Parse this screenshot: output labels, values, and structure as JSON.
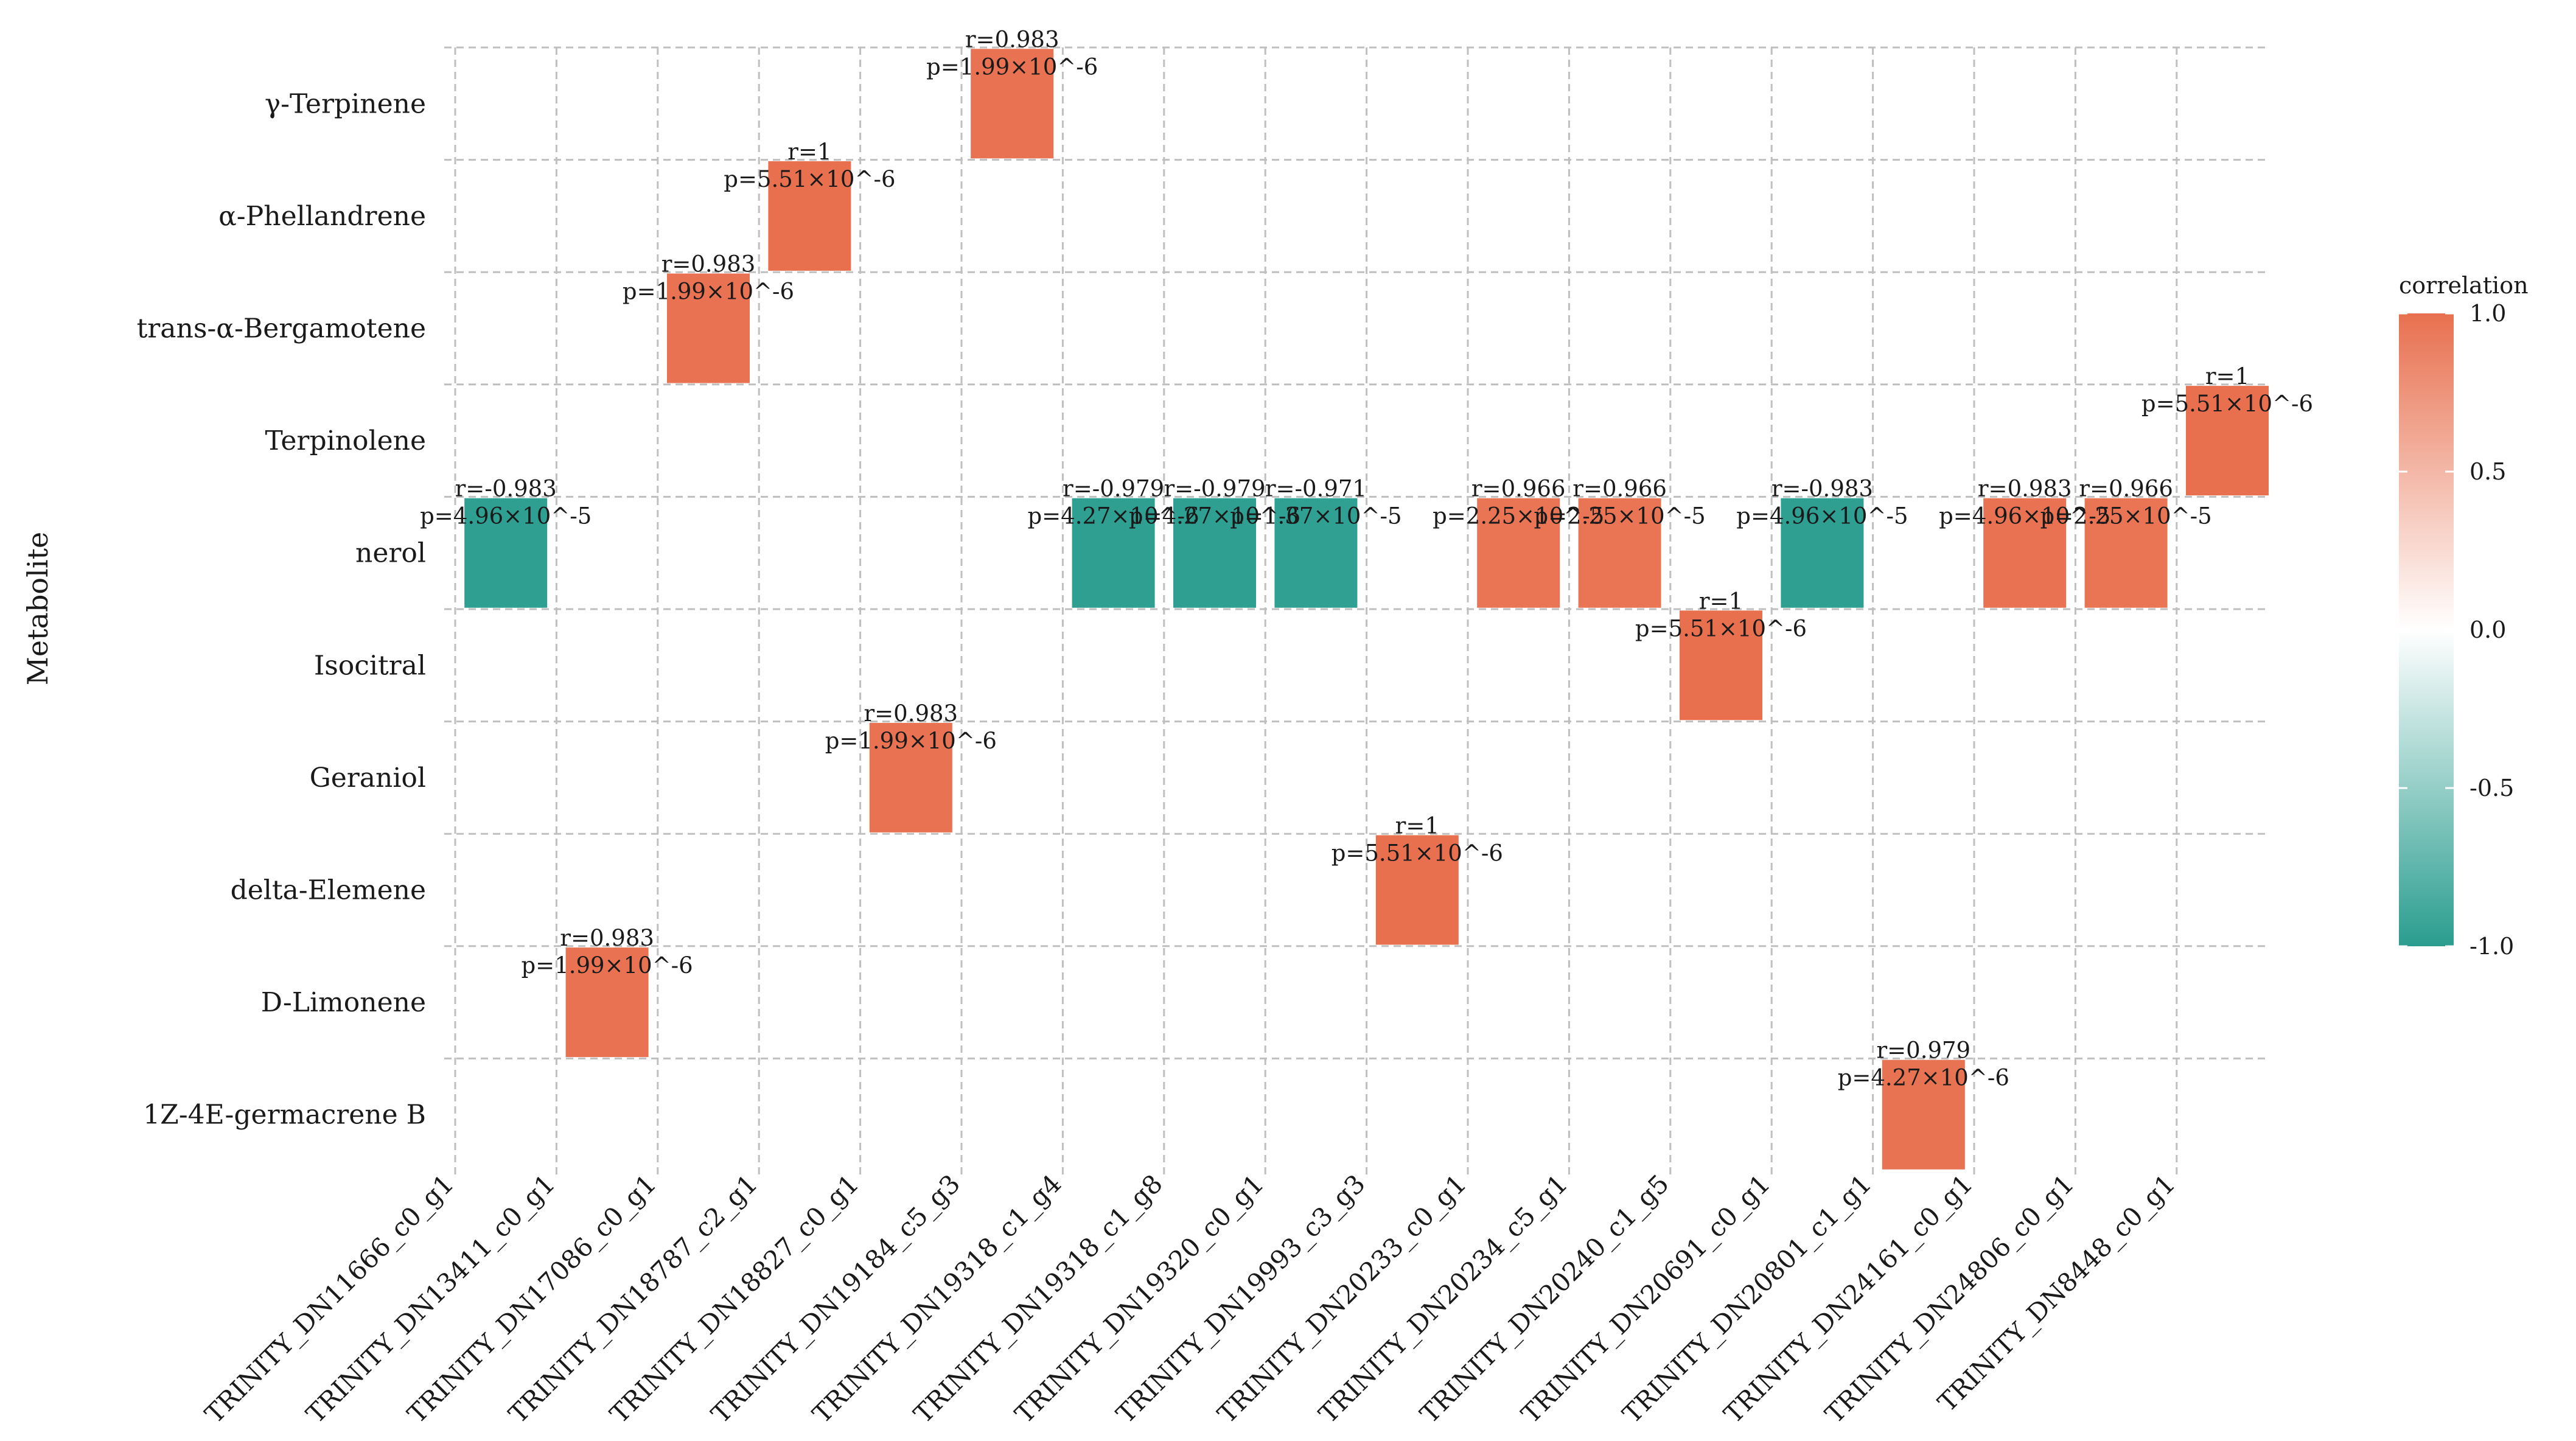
{
  "chart_data": {
    "type": "heatmap",
    "ylabel": "Metabolite",
    "xlabel": "",
    "legend": {
      "title": "correlation",
      "ticks": [
        "1.0",
        "0.5",
        "0.0",
        "-0.5",
        "-1.0"
      ],
      "tick_values": [
        1.0,
        0.5,
        0.0,
        -0.5,
        -1.0
      ],
      "placement": "right"
    },
    "colors": {
      "positive": "#e8704f",
      "neutral": "#ffffff",
      "negative": "#2a9d8f",
      "grid": "#bfbfbf"
    },
    "x_categories": [
      "TRINITY_DN11666_c0_g1",
      "TRINITY_DN13411_c0_g1",
      "TRINITY_DN17086_c0_g1",
      "TRINITY_DN18787_c2_g1",
      "TRINITY_DN18827_c0_g1",
      "TRINITY_DN19184_c5_g3",
      "TRINITY_DN19318_c1_g4",
      "TRINITY_DN19318_c1_g8",
      "TRINITY_DN19320_c0_g1",
      "TRINITY_DN19993_c3_g3",
      "TRINITY_DN20233_c0_g1",
      "TRINITY_DN20234_c5_g1",
      "TRINITY_DN20240_c1_g5",
      "TRINITY_DN20691_c0_g1",
      "TRINITY_DN20801_c1_g1",
      "TRINITY_DN24161_c0_g1",
      "TRINITY_DN24806_c0_g1",
      "TRINITY_DN8448_c0_g1"
    ],
    "y_categories": [
      "γ-Terpinene",
      "α-Phellandrene",
      "trans-α-Bergamotene",
      "Terpinolene",
      "nerol",
      "Isocitral",
      "Geraniol",
      "delta-Elemene",
      "D-Limonene",
      "1Z-4E-germacrene B"
    ],
    "cells": [
      {
        "x": "TRINITY_DN19184_c5_g3",
        "y": "γ-Terpinene",
        "value": 0.983,
        "r_label": "r=0.983",
        "p_label": "p=1.99×10^-6"
      },
      {
        "x": "TRINITY_DN18787_c2_g1",
        "y": "α-Phellandrene",
        "value": 1,
        "r_label": "r=1",
        "p_label": "p=5.51×10^-6"
      },
      {
        "x": "TRINITY_DN17086_c0_g1",
        "y": "trans-α-Bergamotene",
        "value": 0.983,
        "r_label": "r=0.983",
        "p_label": "p=1.99×10^-6"
      },
      {
        "x": "TRINITY_DN8448_c0_g1",
        "y": "Terpinolene",
        "value": 1,
        "r_label": "r=1",
        "p_label": "p=5.51×10^-6"
      },
      {
        "x": "TRINITY_DN11666_c0_g1",
        "y": "nerol",
        "value": -0.983,
        "r_label": "r=-0.983",
        "p_label": "p=4.96×10^-5"
      },
      {
        "x": "TRINITY_DN19318_c1_g4",
        "y": "nerol",
        "value": -0.979,
        "r_label": "r=-0.979",
        "p_label": "p=4.27×10^-6"
      },
      {
        "x": "TRINITY_DN19318_c1_g8",
        "y": "nerol",
        "value": -0.979,
        "r_label": "r=-0.979",
        "p_label": "p=4.27×10^-6"
      },
      {
        "x": "TRINITY_DN19320_c0_g1",
        "y": "nerol",
        "value": -0.971,
        "r_label": "r=-0.971",
        "p_label": "p=1.37×10^-5"
      },
      {
        "x": "TRINITY_DN20233_c0_g1",
        "y": "nerol",
        "value": 0.966,
        "r_label": "r=0.966",
        "p_label": "p=2.25×10^-5"
      },
      {
        "x": "TRINITY_DN20234_c5_g1",
        "y": "nerol",
        "value": 0.966,
        "r_label": "r=0.966",
        "p_label": "p=2.25×10^-5"
      },
      {
        "x": "TRINITY_DN20691_c0_g1",
        "y": "nerol",
        "value": -0.983,
        "r_label": "r=-0.983",
        "p_label": "p=4.96×10^-5"
      },
      {
        "x": "TRINITY_DN24161_c0_g1",
        "y": "nerol",
        "value": 0.983,
        "r_label": "r=0.983",
        "p_label": "p=4.96×10^-5"
      },
      {
        "x": "TRINITY_DN24806_c0_g1",
        "y": "nerol",
        "value": 0.966,
        "r_label": "r=0.966",
        "p_label": "p=2.25×10^-5"
      },
      {
        "x": "TRINITY_DN20240_c1_g5",
        "y": "Isocitral",
        "value": 1,
        "r_label": "r=1",
        "p_label": "p=5.51×10^-6"
      },
      {
        "x": "TRINITY_DN18827_c0_g1",
        "y": "Geraniol",
        "value": 0.983,
        "r_label": "r=0.983",
        "p_label": "p=1.99×10^-6"
      },
      {
        "x": "TRINITY_DN19993_c3_g3",
        "y": "delta-Elemene",
        "value": 1,
        "r_label": "r=1",
        "p_label": "p=5.51×10^-6"
      },
      {
        "x": "TRINITY_DN13411_c0_g1",
        "y": "D-Limonene",
        "value": 0.983,
        "r_label": "r=0.983",
        "p_label": "p=1.99×10^-6"
      },
      {
        "x": "TRINITY_DN20801_c1_g1",
        "y": "1Z-4E-germacrene B",
        "value": 0.979,
        "r_label": "r=0.979",
        "p_label": "p=4.27×10^-6"
      }
    ]
  }
}
